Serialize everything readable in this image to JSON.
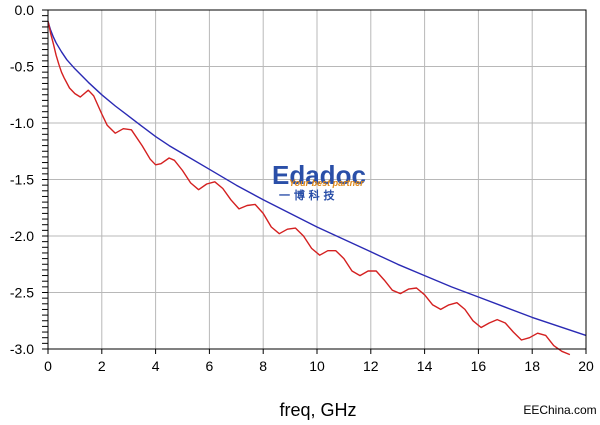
{
  "chart_data": {
    "type": "line",
    "xlabel": "freq, GHz",
    "ylabel": "",
    "xlim": [
      0,
      20
    ],
    "ylim": [
      -3.0,
      0.0
    ],
    "x_ticks": [
      0,
      2,
      4,
      6,
      8,
      10,
      12,
      14,
      16,
      18,
      20
    ],
    "x_tick_labels": [
      "0",
      "2",
      "4",
      "6",
      "8",
      "10",
      "12",
      "14",
      "16",
      "18",
      "20"
    ],
    "y_ticks": [
      0.0,
      -0.5,
      -1.0,
      -1.5,
      -2.0,
      -2.5,
      -3.0
    ],
    "y_tick_labels": [
      "0.0",
      "-0.5",
      "-1.0",
      "-1.5",
      "-2.0",
      "-2.5",
      "-3.0"
    ],
    "grid": true,
    "series": [
      {
        "color": "#2a2ab4",
        "x": [
          0.0,
          0.05,
          0.1,
          0.2,
          0.3,
          0.5,
          0.7,
          1.0,
          1.5,
          2.0,
          2.5,
          3.0,
          3.5,
          4.0,
          4.5,
          5.0,
          6.0,
          7.0,
          8.0,
          9.0,
          10.0,
          11.0,
          12.0,
          13.0,
          14.0,
          15.0,
          16.0,
          17.0,
          18.0,
          19.0,
          20.0
        ],
        "y": [
          -0.1,
          -0.14,
          -0.18,
          -0.24,
          -0.29,
          -0.37,
          -0.44,
          -0.52,
          -0.64,
          -0.75,
          -0.85,
          -0.94,
          -1.03,
          -1.12,
          -1.2,
          -1.27,
          -1.41,
          -1.55,
          -1.68,
          -1.8,
          -1.92,
          -2.03,
          -2.14,
          -2.25,
          -2.35,
          -2.45,
          -2.54,
          -2.63,
          -2.72,
          -2.8,
          -2.88
        ]
      },
      {
        "color": "#d42020",
        "x": [
          0.0,
          0.05,
          0.1,
          0.2,
          0.3,
          0.4,
          0.5,
          0.6,
          0.8,
          1.0,
          1.2,
          1.5,
          1.7,
          2.0,
          2.2,
          2.5,
          2.8,
          3.1,
          3.5,
          3.8,
          4.0,
          4.2,
          4.5,
          4.7,
          5.0,
          5.3,
          5.6,
          5.9,
          6.2,
          6.5,
          6.8,
          7.1,
          7.4,
          7.7,
          8.0,
          8.3,
          8.6,
          8.9,
          9.2,
          9.5,
          9.8,
          10.1,
          10.4,
          10.7,
          11.0,
          11.3,
          11.6,
          11.9,
          12.2,
          12.5,
          12.8,
          13.1,
          13.4,
          13.7,
          14.0,
          14.3,
          14.6,
          14.9,
          15.2,
          15.5,
          15.8,
          16.1,
          16.4,
          16.7,
          17.0,
          17.3,
          17.6,
          17.9,
          18.2,
          18.5,
          18.8,
          19.1,
          19.4
        ],
        "y": [
          -0.1,
          -0.15,
          -0.21,
          -0.3,
          -0.4,
          -0.48,
          -0.55,
          -0.6,
          -0.69,
          -0.74,
          -0.77,
          -0.71,
          -0.76,
          -0.92,
          -1.02,
          -1.09,
          -1.05,
          -1.06,
          -1.2,
          -1.32,
          -1.37,
          -1.36,
          -1.31,
          -1.33,
          -1.42,
          -1.53,
          -1.59,
          -1.54,
          -1.52,
          -1.58,
          -1.68,
          -1.76,
          -1.73,
          -1.72,
          -1.8,
          -1.92,
          -1.98,
          -1.94,
          -1.93,
          -2.0,
          -2.11,
          -2.17,
          -2.13,
          -2.13,
          -2.2,
          -2.31,
          -2.35,
          -2.31,
          -2.31,
          -2.39,
          -2.48,
          -2.51,
          -2.47,
          -2.46,
          -2.52,
          -2.61,
          -2.65,
          -2.61,
          -2.59,
          -2.65,
          -2.75,
          -2.81,
          -2.77,
          -2.74,
          -2.77,
          -2.85,
          -2.92,
          -2.9,
          -2.86,
          -2.88,
          -2.97,
          -3.02,
          -3.05
        ]
      }
    ]
  },
  "watermark": {
    "brand": "Edadoc",
    "tagline": "Your best partner",
    "cn": "一 博 科 技",
    "brand_color": "#2a4fa8",
    "tagline_color": "#e08a1a"
  },
  "credit": "EEChina.com"
}
